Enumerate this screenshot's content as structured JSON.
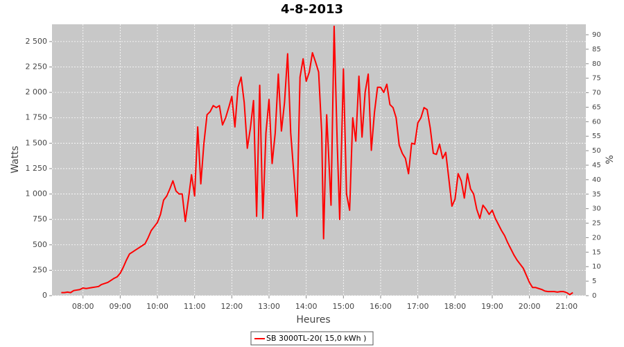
{
  "chart_data": {
    "type": "line",
    "title": "4-8-2013",
    "x_label": "Heures",
    "y_label": "Watts",
    "y2_label": "%",
    "xlim": [
      "07:10",
      "21:31"
    ],
    "ylim": [
      0,
      2670
    ],
    "y2lim": [
      0,
      93.6
    ],
    "xticks": [
      "08:00",
      "09:00",
      "10:00",
      "11:00",
      "12:00",
      "13:00",
      "14:00",
      "15:00",
      "16:00",
      "17:00",
      "18:00",
      "19:00",
      "20:00",
      "21:00"
    ],
    "yticks": [
      0,
      250,
      500,
      750,
      {
        "value": 1000,
        "label": "1 000"
      },
      {
        "value": 1250,
        "label": "1 250"
      },
      {
        "value": 1500,
        "label": "1 500"
      },
      {
        "value": 1750,
        "label": "1 750"
      },
      {
        "value": 2000,
        "label": "2 000"
      },
      {
        "value": 2250,
        "label": "2 250"
      },
      {
        "value": 2500,
        "label": "2 500"
      }
    ],
    "y2ticks": [
      0,
      5,
      10,
      15,
      20,
      25,
      30,
      35,
      40,
      45,
      50,
      55,
      60,
      65,
      70,
      75,
      80,
      85,
      90
    ],
    "grid": true,
    "background": "#c8c8c8",
    "x": [
      "07:25",
      "07:30",
      "07:35",
      "07:40",
      "07:45",
      "07:50",
      "07:55",
      "08:00",
      "08:05",
      "08:10",
      "08:15",
      "08:20",
      "08:25",
      "08:30",
      "08:35",
      "08:40",
      "08:45",
      "08:50",
      "08:55",
      "09:00",
      "09:05",
      "09:10",
      "09:15",
      "09:20",
      "09:25",
      "09:30",
      "09:35",
      "09:40",
      "09:45",
      "09:50",
      "09:55",
      "10:00",
      "10:05",
      "10:10",
      "10:15",
      "10:20",
      "10:25",
      "10:30",
      "10:35",
      "10:40",
      "10:45",
      "10:50",
      "10:55",
      "11:00",
      "11:05",
      "11:10",
      "11:15",
      "11:20",
      "11:25",
      "11:30",
      "11:35",
      "11:40",
      "11:45",
      "11:50",
      "11:55",
      "12:00",
      "12:05",
      "12:10",
      "12:15",
      "12:20",
      "12:25",
      "12:30",
      "12:35",
      "12:40",
      "12:45",
      "12:50",
      "12:55",
      "13:00",
      "13:05",
      "13:10",
      "13:15",
      "13:20",
      "13:25",
      "13:30",
      "13:35",
      "13:40",
      "13:45",
      "13:50",
      "13:55",
      "14:00",
      "14:05",
      "14:10",
      "14:15",
      "14:20",
      "14:25",
      "14:28",
      "14:33",
      "14:40",
      "14:45",
      "14:50",
      "14:54",
      "15:00",
      "15:05",
      "15:10",
      "15:15",
      "15:20",
      "15:25",
      "15:30",
      "15:35",
      "15:40",
      "15:45",
      "15:50",
      "15:55",
      "16:00",
      "16:05",
      "16:10",
      "16:15",
      "16:20",
      "16:25",
      "16:30",
      "16:35",
      "16:40",
      "16:45",
      "16:50",
      "16:55",
      "17:00",
      "17:05",
      "17:10",
      "17:15",
      "17:20",
      "17:25",
      "17:30",
      "17:35",
      "17:40",
      "17:45",
      "17:50",
      "17:55",
      "18:00",
      "18:05",
      "18:10",
      "18:15",
      "18:20",
      "18:25",
      "18:30",
      "18:35",
      "18:40",
      "18:45",
      "18:50",
      "18:55",
      "19:00",
      "19:05",
      "19:10",
      "19:15",
      "19:20",
      "19:25",
      "19:30",
      "19:35",
      "19:40",
      "19:45",
      "19:50",
      "19:55",
      "20:00",
      "20:05",
      "20:10",
      "20:15",
      "20:20",
      "20:25",
      "20:30",
      "20:35",
      "20:40",
      "20:45",
      "20:50",
      "20:55",
      "21:00",
      "21:05",
      "21:10"
    ],
    "series": [
      {
        "name": "SB 3000TL-20( 15,0 kWh )",
        "color": "#ff0000",
        "values": [
          30,
          30,
          35,
          30,
          50,
          55,
          60,
          75,
          70,
          75,
          80,
          85,
          90,
          110,
          120,
          130,
          150,
          170,
          185,
          220,
          280,
          350,
          410,
          430,
          450,
          470,
          490,
          510,
          570,
          640,
          680,
          720,
          800,
          940,
          980,
          1050,
          1130,
          1030,
          1000,
          1000,
          730,
          950,
          1190,
          980,
          1660,
          1100,
          1500,
          1780,
          1810,
          1870,
          1850,
          1870,
          1680,
          1750,
          1850,
          1960,
          1660,
          2050,
          2150,
          1900,
          1450,
          1650,
          1920,
          780,
          2070,
          760,
          1600,
          1930,
          1300,
          1600,
          2180,
          1620,
          1900,
          2380,
          1600,
          1200,
          780,
          2150,
          2330,
          2110,
          2200,
          2390,
          2300,
          2200,
          1600,
          560,
          1780,
          890,
          2650,
          1500,
          750,
          2230,
          1000,
          840,
          1750,
          1520,
          2160,
          1560,
          2000,
          2180,
          1430,
          1800,
          2050,
          2050,
          2000,
          2080,
          1880,
          1850,
          1750,
          1480,
          1400,
          1350,
          1200,
          1500,
          1490,
          1700,
          1750,
          1850,
          1830,
          1650,
          1400,
          1390,
          1490,
          1350,
          1410,
          1150,
          880,
          950,
          1200,
          1130,
          960,
          1200,
          1050,
          1000,
          850,
          760,
          890,
          850,
          800,
          840,
          760,
          700,
          640,
          590,
          520,
          460,
          400,
          350,
          310,
          270,
          200,
          130,
          80,
          80,
          70,
          60,
          45,
          40,
          40,
          40,
          35,
          40,
          40,
          30,
          10,
          30
        ]
      }
    ]
  }
}
